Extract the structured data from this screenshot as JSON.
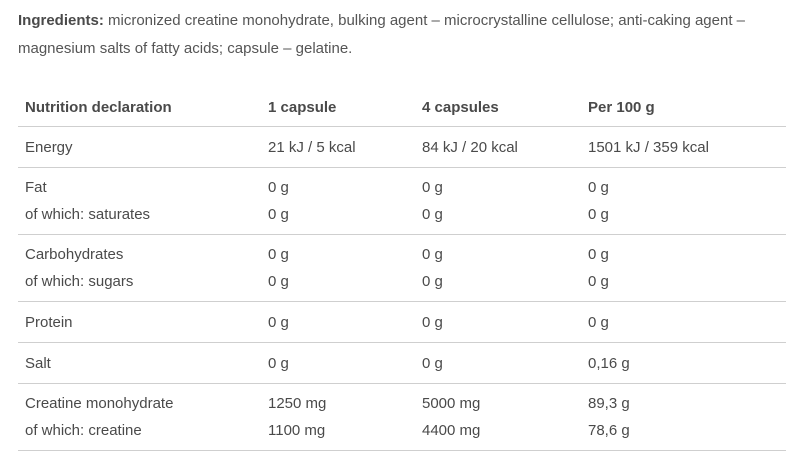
{
  "ingredients": {
    "label": "Ingredients:",
    "text": " micronized creatine monohydrate, bulking agent – microcrystalline cellulose; anti-caking agent – magnesium salts of fatty acids; capsule – gelatine."
  },
  "table": {
    "headers": [
      "Nutrition declaration",
      "1 capsule",
      "4 capsules",
      "Per 100 g"
    ],
    "rows": [
      {
        "label": [
          "Energy"
        ],
        "c1": [
          "21 kJ / 5 kcal"
        ],
        "c2": [
          "84 kJ / 20 kcal"
        ],
        "c3": [
          "1501 kJ / 359 kcal"
        ]
      },
      {
        "label": [
          "Fat",
          "of which: saturates"
        ],
        "c1": [
          "0 g",
          "0 g"
        ],
        "c2": [
          "0 g",
          "0 g"
        ],
        "c3": [
          "0 g",
          "0 g"
        ]
      },
      {
        "label": [
          "Carbohydrates",
          "of which: sugars"
        ],
        "c1": [
          "0 g",
          "0 g"
        ],
        "c2": [
          "0 g",
          "0 g"
        ],
        "c3": [
          "0 g",
          "0 g"
        ]
      },
      {
        "label": [
          "Protein"
        ],
        "c1": [
          "0 g"
        ],
        "c2": [
          "0 g"
        ],
        "c3": [
          "0 g"
        ]
      },
      {
        "label": [
          "Salt"
        ],
        "c1": [
          "0 g"
        ],
        "c2": [
          "0 g"
        ],
        "c3": [
          "0,16 g"
        ]
      },
      {
        "label": [
          "Creatine monohydrate",
          "of which: creatine"
        ],
        "c1": [
          "1250 mg",
          "1100 mg"
        ],
        "c2": [
          "5000 mg",
          "4400 mg"
        ],
        "c3": [
          "89,3 g",
          "78,6 g"
        ]
      }
    ]
  }
}
